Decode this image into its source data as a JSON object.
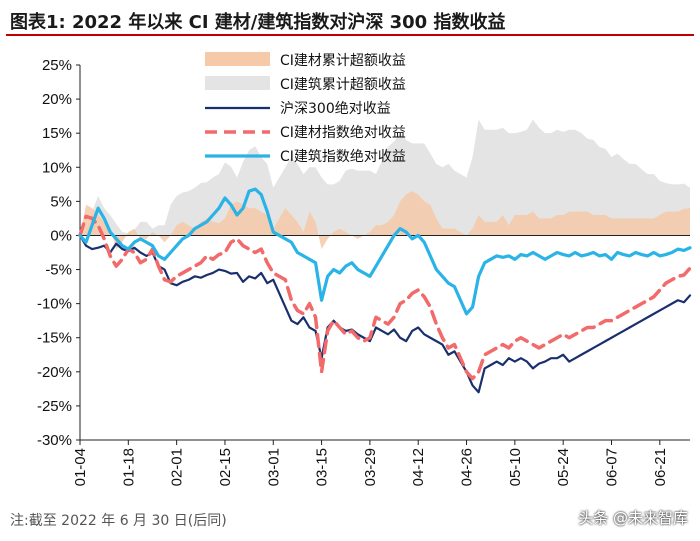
{
  "header": {
    "title": "图表1:   2022 年以来 CI 建材/建筑指数对沪深 300 指数收益"
  },
  "footnote": "注:截至 2022 年 6 月 30 日(后同)",
  "watermark": "头条 @未来智库",
  "chart_data": {
    "type": "line",
    "title": "2022 年以来 CI 建材/建筑指数对沪深 300 指数收益",
    "ylim": [
      -30,
      25
    ],
    "yticks": [
      25,
      20,
      15,
      10,
      5,
      0,
      -5,
      -10,
      -15,
      -20,
      -25,
      -30
    ],
    "ytick_labels": [
      "25%",
      "20%",
      "15%",
      "10%",
      "5%",
      "0%",
      "-5%",
      "-10%",
      "-15%",
      "-20%",
      "-25%",
      "-30%"
    ],
    "x_ticks": [
      "01-04",
      "01-18",
      "02-01",
      "02-15",
      "03-01",
      "03-15",
      "03-29",
      "04-12",
      "04-26",
      "05-10",
      "05-24",
      "06-07",
      "06-21"
    ],
    "x_tick_index": [
      0,
      8,
      16,
      24,
      32,
      40,
      48,
      56,
      64,
      72,
      80,
      88,
      96
    ],
    "n_points": 102,
    "colors": {
      "cement_excess": "#f6c9a8",
      "construction_excess": "#e4e4e4",
      "hs300": "#1a2f6e",
      "cement_abs": "#f26a6a",
      "construction_abs": "#2ab3e6"
    },
    "legend": [
      {
        "key": "cement_excess",
        "label": "CI建材累计超额收益",
        "style": "area"
      },
      {
        "key": "construction_excess",
        "label": "CI建筑累计超额收益",
        "style": "area"
      },
      {
        "key": "hs300",
        "label": "沪深300绝对收益",
        "style": "solid"
      },
      {
        "key": "cement_abs",
        "label": "CI建材指数绝对收益",
        "style": "dashed"
      },
      {
        "key": "construction_abs",
        "label": "CI建筑指数绝对收益",
        "style": "solid-thick"
      }
    ],
    "series": [
      {
        "name": "沪深300绝对收益",
        "key": "hs300",
        "values": [
          0.0,
          -1.5,
          -2.0,
          -1.8,
          -1.5,
          -2.5,
          -1.2,
          -2.0,
          -2.3,
          -1.8,
          -2.5,
          -3.0,
          -2.5,
          -4.5,
          -5.0,
          -7.0,
          -7.3,
          -6.8,
          -6.5,
          -6.0,
          -6.2,
          -5.8,
          -5.5,
          -5.0,
          -5.2,
          -5.6,
          -5.5,
          -6.8,
          -6.0,
          -6.3,
          -5.5,
          -7.0,
          -6.5,
          -8.5,
          -10.5,
          -12.5,
          -13.0,
          -12.0,
          -13.5,
          -14.0,
          -18.0,
          -13.5,
          -12.5,
          -13.5,
          -14.0,
          -13.8,
          -14.5,
          -15.0,
          -15.5,
          -13.5,
          -14.0,
          -14.5,
          -13.8,
          -15.0,
          -15.5,
          -14.0,
          -13.5,
          -14.5,
          -15.0,
          -15.5,
          -16.0,
          -17.5,
          -17.0,
          -18.5,
          -20.0,
          -22.0,
          -23.0,
          -19.5,
          -19.0,
          -18.5,
          -19.0,
          -18.0,
          -18.5,
          -18.0,
          -18.5,
          -19.5,
          -18.8,
          -18.5,
          -18.0,
          -18.0,
          -17.5,
          -18.5,
          -18.0,
          -17.5,
          -17.0,
          -16.5,
          -16.0,
          -15.5,
          -15.0,
          -14.5,
          -14.0,
          -13.5,
          -13.0,
          -12.5,
          -12.0,
          -11.5,
          -11.0,
          -10.5,
          -10.0,
          -9.5,
          -9.8,
          -8.8
        ]
      },
      {
        "name": "CI建材指数绝对收益",
        "key": "cement_abs",
        "values": [
          0.0,
          2.8,
          2.5,
          1.5,
          -0.5,
          -3.0,
          -4.5,
          -3.5,
          -2.0,
          -2.5,
          -4.0,
          -3.5,
          -2.0,
          -4.5,
          -6.5,
          -6.8,
          -6.0,
          -5.5,
          -5.0,
          -4.5,
          -4.0,
          -3.0,
          -3.5,
          -2.8,
          -2.5,
          -1.0,
          -0.5,
          -1.5,
          -2.0,
          -2.5,
          -2.0,
          -4.0,
          -5.5,
          -6.0,
          -6.5,
          -9.5,
          -11.0,
          -11.5,
          -10.0,
          -12.0,
          -20.0,
          -14.0,
          -12.5,
          -13.5,
          -14.5,
          -14.0,
          -15.0,
          -15.5,
          -15.0,
          -12.0,
          -12.5,
          -13.0,
          -12.0,
          -10.0,
          -9.5,
          -8.5,
          -8.0,
          -9.0,
          -10.5,
          -13.0,
          -15.0,
          -16.5,
          -16.0,
          -18.0,
          -20.0,
          -21.0,
          -20.0,
          -17.5,
          -17.0,
          -16.5,
          -16.0,
          -16.5,
          -15.5,
          -15.0,
          -15.5,
          -16.0,
          -16.5,
          -16.0,
          -15.5,
          -15.0,
          -14.5,
          -15.0,
          -14.5,
          -14.0,
          -13.5,
          -13.5,
          -13.0,
          -12.5,
          -12.5,
          -12.0,
          -11.5,
          -11.0,
          -10.5,
          -10.0,
          -9.5,
          -9.0,
          -8.0,
          -7.0,
          -6.5,
          -6.0,
          -5.8,
          -4.8
        ]
      },
      {
        "name": "CI建筑指数绝对收益",
        "key": "construction_abs",
        "values": [
          0.0,
          -1.0,
          1.5,
          4.0,
          2.5,
          0.5,
          -0.5,
          -1.5,
          -2.0,
          -1.0,
          -0.5,
          -1.0,
          -1.5,
          -3.0,
          -3.5,
          -2.5,
          -1.5,
          -0.5,
          0.0,
          1.0,
          1.5,
          2.0,
          3.0,
          4.0,
          5.5,
          4.5,
          3.0,
          4.0,
          6.5,
          6.8,
          6.0,
          3.5,
          0.5,
          0.0,
          -0.5,
          -1.0,
          -2.5,
          -3.0,
          -3.5,
          -4.0,
          -9.5,
          -6.0,
          -5.0,
          -5.5,
          -4.5,
          -4.0,
          -5.0,
          -5.5,
          -6.0,
          -4.5,
          -3.0,
          -1.5,
          0.0,
          1.0,
          0.5,
          -0.5,
          0.0,
          -1.0,
          -3.0,
          -5.0,
          -6.0,
          -7.0,
          -7.5,
          -9.5,
          -11.5,
          -10.5,
          -6.0,
          -4.0,
          -3.5,
          -3.0,
          -3.2,
          -3.0,
          -3.5,
          -2.8,
          -3.0,
          -2.5,
          -3.0,
          -3.5,
          -3.0,
          -2.5,
          -2.8,
          -3.0,
          -2.5,
          -3.0,
          -2.8,
          -2.5,
          -3.0,
          -2.8,
          -3.5,
          -2.5,
          -2.8,
          -3.0,
          -2.5,
          -2.8,
          -3.0,
          -2.5,
          -3.0,
          -2.8,
          -2.5,
          -2.0,
          -2.2,
          -1.8
        ]
      },
      {
        "name": "CI建材累计超额收益",
        "key": "cement_excess",
        "values": [
          0.0,
          4.5,
          4.0,
          3.0,
          2.0,
          1.0,
          -2.0,
          -1.0,
          0.5,
          1.0,
          -0.5,
          -0.5,
          0.5,
          0.0,
          -1.0,
          0.0,
          1.5,
          2.0,
          1.5,
          1.0,
          2.0,
          2.5,
          2.0,
          1.8,
          2.5,
          4.5,
          5.0,
          4.5,
          4.0,
          4.0,
          3.5,
          3.0,
          1.0,
          2.5,
          4.0,
          3.0,
          2.0,
          0.5,
          3.5,
          2.0,
          -2.0,
          -0.5,
          0.5,
          1.0,
          0.5,
          0.0,
          -0.5,
          0.0,
          0.5,
          1.5,
          1.5,
          2.0,
          3.0,
          5.0,
          6.0,
          6.5,
          6.0,
          5.0,
          4.5,
          2.5,
          1.0,
          1.0,
          1.0,
          0.5,
          0.0,
          1.0,
          3.0,
          2.0,
          2.0,
          2.0,
          3.0,
          1.5,
          3.0,
          3.0,
          3.0,
          3.5,
          2.5,
          2.5,
          2.5,
          3.0,
          3.0,
          3.5,
          3.5,
          3.5,
          3.5,
          3.0,
          3.0,
          3.0,
          2.5,
          2.5,
          2.5,
          2.5,
          2.5,
          2.5,
          2.5,
          2.5,
          3.0,
          3.5,
          3.5,
          3.5,
          3.9,
          4.0
        ]
      },
      {
        "name": "CI建筑累计超额收益",
        "key": "construction_excess",
        "values": [
          0.0,
          0.5,
          3.5,
          5.8,
          4.0,
          3.0,
          1.7,
          0.5,
          0.3,
          0.8,
          2.0,
          2.0,
          1.0,
          1.5,
          1.5,
          4.5,
          5.8,
          6.3,
          6.5,
          7.0,
          7.7,
          7.8,
          8.5,
          9.0,
          10.7,
          10.1,
          8.5,
          10.8,
          12.5,
          13.1,
          11.5,
          10.5,
          7.0,
          8.5,
          10.0,
          11.5,
          10.5,
          9.0,
          10.0,
          10.0,
          8.5,
          7.5,
          7.5,
          8.0,
          9.5,
          9.8,
          9.5,
          9.5,
          9.5,
          9.0,
          11.0,
          13.0,
          13.8,
          15.0,
          14.0,
          13.5,
          13.5,
          13.5,
          12.0,
          10.5,
          10.0,
          10.5,
          9.5,
          9.0,
          8.5,
          11.5,
          17.0,
          15.5,
          15.5,
          15.5,
          15.8,
          15.0,
          15.0,
          15.2,
          15.5,
          17.0,
          15.8,
          15.0,
          15.0,
          15.5,
          15.2,
          15.5,
          15.5,
          15.0,
          14.2,
          14.0,
          13.0,
          12.7,
          11.5,
          12.0,
          11.2,
          10.5,
          10.5,
          9.7,
          9.0,
          9.0,
          8.0,
          7.7,
          7.5,
          7.5,
          7.6,
          7.0
        ]
      }
    ]
  }
}
